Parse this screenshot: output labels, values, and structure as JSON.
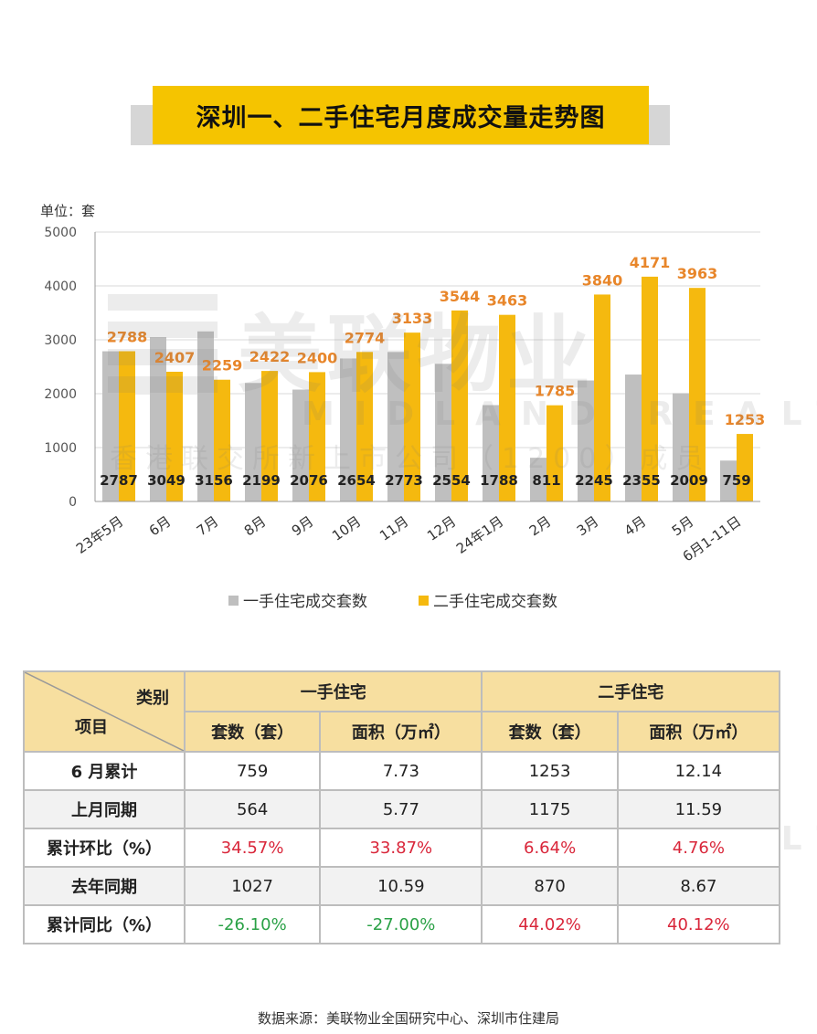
{
  "title": "深圳一、二手住宅月度成交量走势图",
  "unit_label": "单位：套",
  "chart_data": {
    "type": "bar",
    "categories": [
      "23年5月",
      "6月",
      "7月",
      "8月",
      "9月",
      "10月",
      "11月",
      "12月",
      "24年1月",
      "2月",
      "3月",
      "4月",
      "5月",
      "6月1-11日"
    ],
    "series": [
      {
        "name": "一手住宅成交套数",
        "color": "#bfbfbf",
        "values": [
          2787,
          3049,
          3156,
          2199,
          2076,
          2654,
          2773,
          2554,
          1788,
          811,
          2245,
          2355,
          2009,
          759
        ]
      },
      {
        "name": "二手住宅成交套数",
        "color": "#f5b90f",
        "values": [
          2788,
          2407,
          2259,
          2422,
          2400,
          2774,
          3133,
          3544,
          3463,
          1785,
          3840,
          4171,
          3963,
          1253
        ]
      }
    ],
    "ylim": [
      0,
      5000
    ],
    "yticks": [
      0,
      1000,
      2000,
      3000,
      4000,
      5000
    ],
    "legend_position": "bottom"
  },
  "table": {
    "corner_top": "类别",
    "corner_bottom": "项目",
    "group_new": "一手住宅",
    "group_second": "二手住宅",
    "col_count": "套数（套）",
    "col_area": "面积（万㎡）",
    "rows": [
      {
        "label": "6 月累计",
        "values": [
          "759",
          "7.73",
          "1253",
          "12.14"
        ],
        "colors": [
          "",
          "",
          "",
          ""
        ]
      },
      {
        "label": "上月同期",
        "values": [
          "564",
          "5.77",
          "1175",
          "11.59"
        ],
        "colors": [
          "",
          "",
          "",
          ""
        ]
      },
      {
        "label": "累计环比（%）",
        "values": [
          "34.57%",
          "33.87%",
          "6.64%",
          "4.76%"
        ],
        "colors": [
          "red",
          "red",
          "red",
          "red"
        ]
      },
      {
        "label": "去年同期",
        "values": [
          "1027",
          "10.59",
          "870",
          "8.67"
        ],
        "colors": [
          "",
          "",
          "",
          ""
        ]
      },
      {
        "label": "累计同比（%）",
        "values": [
          "-26.10%",
          "-27.00%",
          "44.02%",
          "40.12%"
        ],
        "colors": [
          "green",
          "green",
          "red",
          "red"
        ]
      }
    ]
  },
  "watermark": {
    "brand_cn": "美联物业",
    "brand_en": "MIDLAND REALTY",
    "line": "香港联交所新上市公司（1200）成员"
  },
  "source": "数据来源：美联物业全国研究中心、深圳市住建局"
}
